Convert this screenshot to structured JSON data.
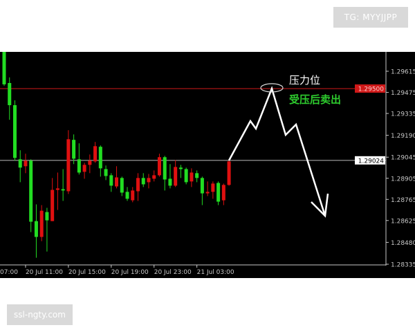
{
  "watermarks": {
    "top": "TG: MYYJJPP",
    "bottom": "ssl-ngty.com"
  },
  "annotations": {
    "resistance_label": "压力位",
    "action_label": "受压后卖出",
    "action_color": "#2ecc2e"
  },
  "chart_data": {
    "type": "candlestick",
    "title": "",
    "colors": {
      "up": "#e01010",
      "down": "#22dd22",
      "background": "#000000",
      "axis": "#c8c8c8"
    },
    "ylim": [
      1.28335,
      1.29615
    ],
    "y_ticks": [
      "1.29615",
      "1.29475",
      "1.29335",
      "1.29190",
      "1.29045",
      "1.28905",
      "1.28765",
      "1.28625",
      "1.28480",
      "1.28335"
    ],
    "x_ticks": [
      {
        "label": "07:00",
        "candle_index": -4
      },
      {
        "label": "20 Jul 11:00",
        "candle_index": 4
      },
      {
        "label": "20 Jul 15:00",
        "candle_index": 12
      },
      {
        "label": "20 Jul 19:00",
        "candle_index": 20
      },
      {
        "label": "20 Jul 23:00",
        "candle_index": 28
      },
      {
        "label": "21 Jul 03:00",
        "candle_index": 36
      }
    ],
    "hlines": [
      {
        "price": 1.295,
        "label": "1.29500",
        "color": "#d01818"
      },
      {
        "price": 1.29024,
        "label": "1.29024",
        "color": "#bbbbbb"
      }
    ],
    "candles_ohlc": [
      [
        1.29744,
        1.29744,
        1.29518,
        1.29528
      ],
      [
        1.29537,
        1.29574,
        1.29293,
        1.2939
      ],
      [
        1.2939,
        1.29422,
        1.29022,
        1.2904
      ],
      [
        1.29031,
        1.29091,
        1.28879,
        1.28976
      ],
      [
        1.28985,
        1.29068,
        1.28939,
        1.29022
      ],
      [
        1.29022,
        1.29031,
        1.28548,
        1.28617
      ],
      [
        1.28621,
        1.28732,
        1.28378,
        1.28516
      ],
      [
        1.28516,
        1.28727,
        1.28488,
        1.2869
      ],
      [
        1.28681,
        1.28709,
        1.28419,
        1.28626
      ],
      [
        1.28621,
        1.28907,
        1.28621,
        1.28828
      ],
      [
        1.28828,
        1.28943,
        1.28695,
        1.28838
      ],
      [
        1.28833,
        1.28966,
        1.28755,
        1.28824
      ],
      [
        1.28819,
        1.29224,
        1.28801,
        1.29164
      ],
      [
        1.2916,
        1.29196,
        1.28999,
        1.29035
      ],
      [
        1.29031,
        1.29137,
        1.2893,
        1.28943
      ],
      [
        1.28948,
        1.29008,
        1.28902,
        1.28994
      ],
      [
        1.28994,
        1.29063,
        1.28939,
        1.29022
      ],
      [
        1.29017,
        1.29146,
        1.29008,
        1.29118
      ],
      [
        1.29114,
        1.29123,
        1.28916,
        1.28971
      ],
      [
        1.28966,
        1.2899,
        1.28893,
        1.2892
      ],
      [
        1.28925,
        1.28939,
        1.28815,
        1.28856
      ],
      [
        1.28851,
        1.28985,
        1.28838,
        1.28911
      ],
      [
        1.28907,
        1.28916,
        1.28787,
        1.2881
      ],
      [
        1.28815,
        1.28847,
        1.28755,
        1.28769
      ],
      [
        1.28759,
        1.28847,
        1.28746,
        1.28824
      ],
      [
        1.28819,
        1.28939,
        1.28755,
        1.28907
      ],
      [
        1.28907,
        1.28939,
        1.28847,
        1.28865
      ],
      [
        1.28879,
        1.28934,
        1.28838,
        1.28907
      ],
      [
        1.28902,
        1.28957,
        1.28884,
        1.28925
      ],
      [
        1.28925,
        1.29068,
        1.28916,
        1.29045
      ],
      [
        1.29045,
        1.29054,
        1.28824,
        1.28897
      ],
      [
        1.28902,
        1.28999,
        1.28838,
        1.28856
      ],
      [
        1.28856,
        1.29026,
        1.28847,
        1.2898
      ],
      [
        1.28976,
        1.28994,
        1.28907,
        1.28966
      ],
      [
        1.28966,
        1.28976,
        1.28865,
        1.28879
      ],
      [
        1.28884,
        1.28971,
        1.28847,
        1.28943
      ],
      [
        1.28939,
        1.28957,
        1.28879,
        1.28907
      ],
      [
        1.28907,
        1.28916,
        1.28727,
        1.28805
      ],
      [
        1.28805,
        1.28884,
        1.28787,
        1.28815
      ],
      [
        1.28815,
        1.28884,
        1.28769,
        1.2887
      ],
      [
        1.28874,
        1.28884,
        1.28727,
        1.2875
      ],
      [
        1.28759,
        1.2887,
        1.28727,
        1.28861
      ],
      [
        1.28861,
        1.29022,
        1.28856,
        1.29017
      ]
    ]
  }
}
